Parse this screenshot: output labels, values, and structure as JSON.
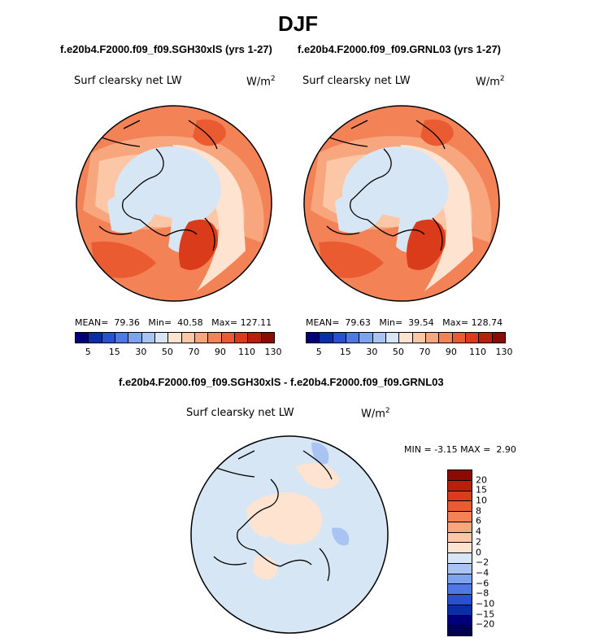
{
  "season": "DJF",
  "panels": [
    {
      "case_name": "f.e20b4.F2000.f09_f09.SGH30xlS (yrs 1-27)",
      "variable_label": "Surf clearsky net LW",
      "units_base": "W/m",
      "units_exp": "2",
      "mean_label": "MEAN=",
      "mean_value": "79.36",
      "min_label": "Min=",
      "min_value": "40.58",
      "max_label": "Max=",
      "max_value": "127.11"
    },
    {
      "case_name": "f.e20b4.F2000.f09_f09.GRNL03 (yrs 1-27)",
      "variable_label": "Surf clearsky net LW",
      "units_base": "W/m",
      "units_exp": "2",
      "mean_label": "MEAN=",
      "mean_value": "79.63",
      "min_label": "Min=",
      "min_value": "39.54",
      "max_label": "Max=",
      "max_value": "128.74"
    }
  ],
  "diff_panel": {
    "title": "f.e20b4.F2000.f09_f09.SGH30xlS - f.e20b4.F2000.f09_f09.GRNL03",
    "variable_label": "Surf clearsky net LW",
    "units_base": "W/m",
    "units_exp": "2",
    "min_label": "MIN =",
    "min_value": "-3.15",
    "max_label": "MAX =",
    "max_value": "2.90"
  },
  "chart_data": [
    {
      "type": "heatmap",
      "projection": "north-polar-stereographic",
      "title": "f.e20b4.F2000.f09_f09.SGH30xlS (yrs 1-27)",
      "variable": "Surf clearsky net LW",
      "units": "W/m^2",
      "colorbar_ticks": [
        "5",
        "15",
        "30",
        "50",
        "70",
        "90",
        "110",
        "130"
      ],
      "colorbar_colors": [
        "#00007a",
        "#0a2ea8",
        "#2850d0",
        "#4f78e4",
        "#7fa2ee",
        "#a9c4f2",
        "#d7e6f5",
        "#fde3d0",
        "#fcc7a6",
        "#f8a67e",
        "#f48257",
        "#eb5b32",
        "#d93b1b",
        "#b8200e",
        "#8a0a04"
      ],
      "stats": {
        "mean": 79.36,
        "min": 40.58,
        "max": 127.11
      }
    },
    {
      "type": "heatmap",
      "projection": "north-polar-stereographic",
      "title": "f.e20b4.F2000.f09_f09.GRNL03 (yrs 1-27)",
      "variable": "Surf clearsky net LW",
      "units": "W/m^2",
      "colorbar_ticks": [
        "5",
        "15",
        "30",
        "50",
        "70",
        "90",
        "110",
        "130"
      ],
      "colorbar_colors": [
        "#00007a",
        "#0a2ea8",
        "#2850d0",
        "#4f78e4",
        "#7fa2ee",
        "#a9c4f2",
        "#d7e6f5",
        "#fde3d0",
        "#fcc7a6",
        "#f8a67e",
        "#f48257",
        "#eb5b32",
        "#d93b1b",
        "#b8200e",
        "#8a0a04"
      ],
      "stats": {
        "mean": 79.63,
        "min": 39.54,
        "max": 128.74
      }
    },
    {
      "type": "heatmap",
      "projection": "north-polar-stereographic",
      "title": "f.e20b4.F2000.f09_f09.SGH30xlS - f.e20b4.F2000.f09_f09.GRNL03",
      "variable": "Surf clearsky net LW",
      "units": "W/m^2",
      "colorbar_ticks": [
        "20",
        "15",
        "10",
        "8",
        "6",
        "4",
        "2",
        "0",
        "−2",
        "−4",
        "−6",
        "−8",
        "−10",
        "−15",
        "−20"
      ],
      "colorbar_colors": [
        "#8a0a04",
        "#b8200e",
        "#d93b1b",
        "#eb5b32",
        "#f48257",
        "#f8a67e",
        "#fcc7a6",
        "#fde3d0",
        "#d7e6f5",
        "#a9c4f2",
        "#7fa2ee",
        "#4f78e4",
        "#2850d0",
        "#0a2ea8",
        "#00007a",
        "#000055"
      ],
      "stats": {
        "min": -3.15,
        "max": 2.9
      }
    }
  ]
}
